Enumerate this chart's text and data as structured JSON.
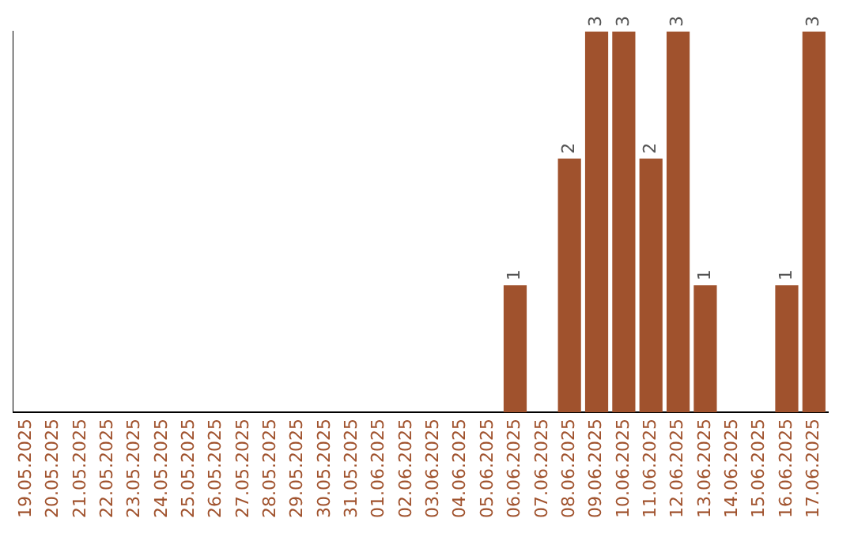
{
  "chart_data": {
    "type": "bar",
    "categories": [
      "19.05.2025",
      "20.05.2025",
      "21.05.2025",
      "22.05.2025",
      "23.05.2025",
      "24.05.2025",
      "25.05.2025",
      "26.05.2025",
      "27.05.2025",
      "28.05.2025",
      "29.05.2025",
      "30.05.2025",
      "31.05.2025",
      "01.06.2025",
      "02.06.2025",
      "03.06.2025",
      "04.06.2025",
      "05.06.2025",
      "06.06.2025",
      "07.06.2025",
      "08.06.2025",
      "09.06.2025",
      "10.06.2025",
      "11.06.2025",
      "12.06.2025",
      "13.06.2025",
      "14.06.2025",
      "15.06.2025",
      "16.06.2025",
      "17.06.2025"
    ],
    "values": [
      null,
      null,
      null,
      null,
      null,
      null,
      null,
      null,
      null,
      null,
      null,
      null,
      null,
      null,
      null,
      null,
      null,
      null,
      1,
      null,
      2,
      3,
      3,
      2,
      3,
      1,
      null,
      null,
      1,
      3
    ],
    "data_labels": true,
    "color": "#a0522d",
    "grid": false,
    "legend": false,
    "tick_labels": "x"
  }
}
